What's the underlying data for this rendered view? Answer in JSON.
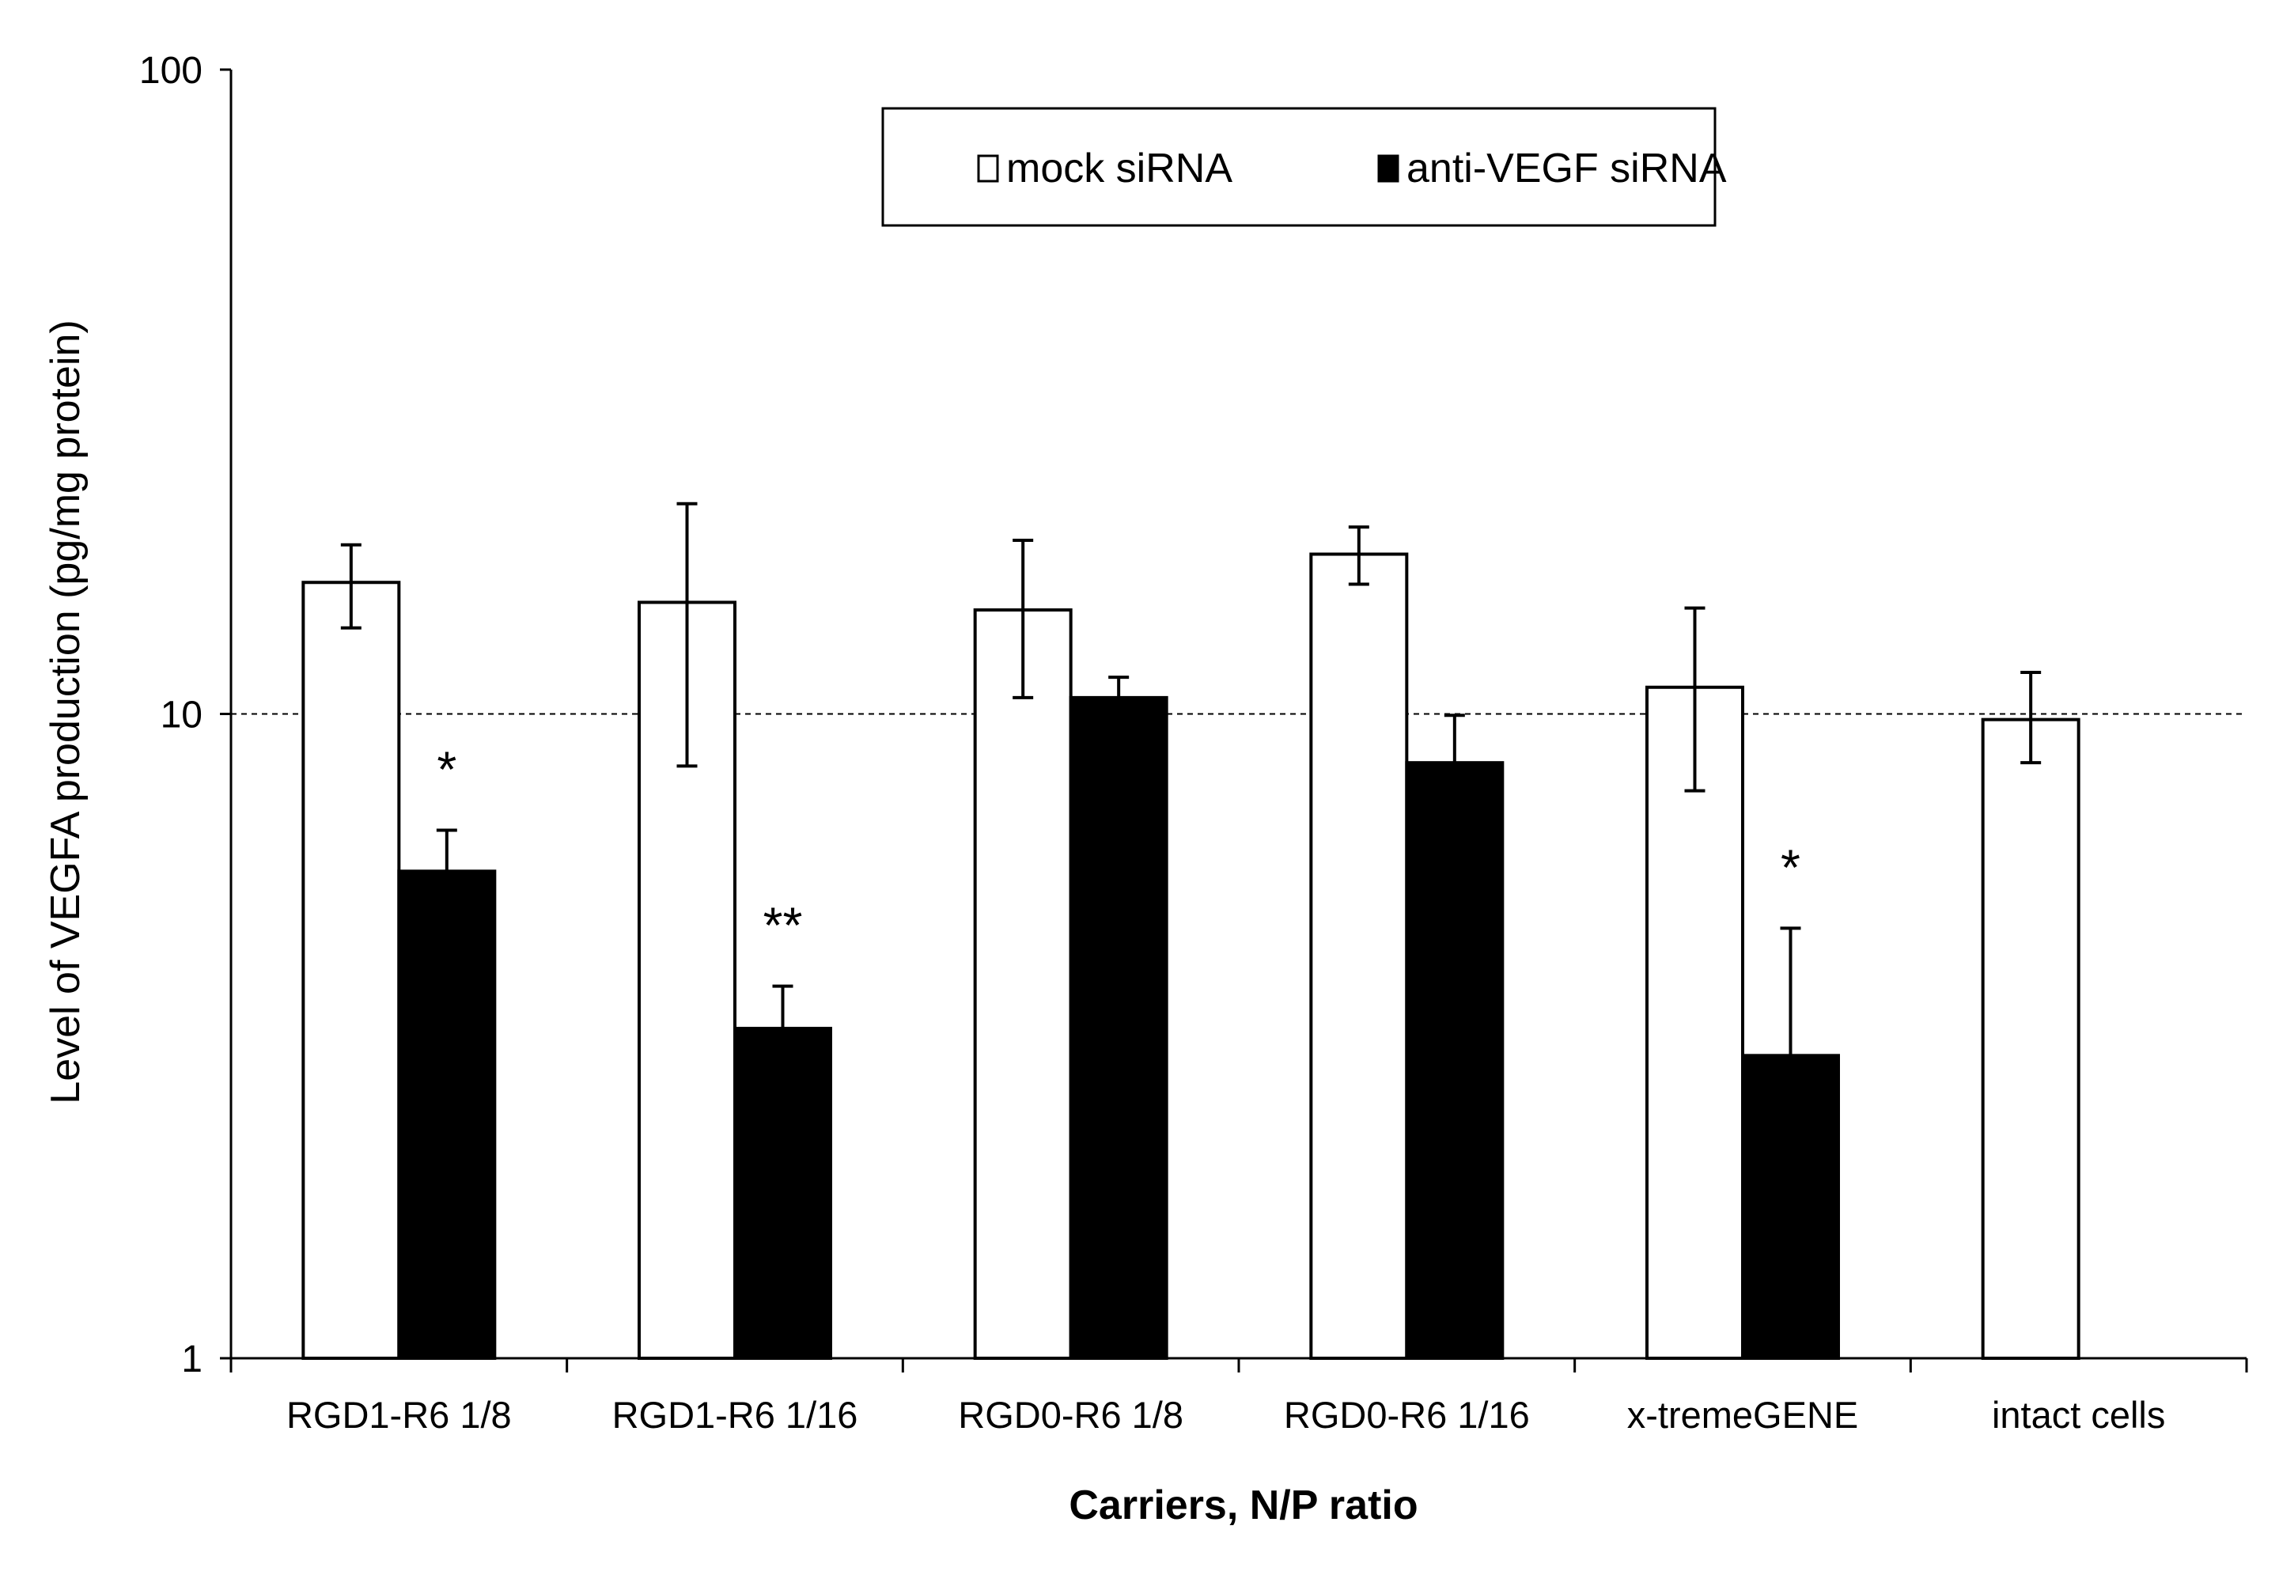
{
  "chart_data": {
    "type": "bar",
    "title": "",
    "xlabel": "Carriers, N/P ratio",
    "ylabel": "Level of VEGFA production (pg/mg protein)",
    "yscale": "log",
    "ylim": [
      1,
      100
    ],
    "yticks": [
      {
        "value": 1,
        "label": "1"
      },
      {
        "value": 10,
        "label": "10"
      },
      {
        "value": 100,
        "label": "100"
      }
    ],
    "reference_line": {
      "value": 10,
      "style": "dashed"
    },
    "categories": [
      "RGD1-R6 1/8",
      "RGD1-R6 1/16",
      "RGD0-R6 1/8",
      "RGD0-R6 1/16",
      "x-tremeGENE",
      "intact cells"
    ],
    "series": [
      {
        "name": "mock siRNA",
        "color": "#ffffff",
        "values": [
          16.0,
          14.9,
          14.5,
          17.7,
          11.0,
          9.8
        ],
        "err_low": [
          13.6,
          8.3,
          10.6,
          15.9,
          7.6,
          8.4
        ],
        "err_high": [
          18.3,
          21.2,
          18.6,
          19.5,
          14.6,
          11.6
        ]
      },
      {
        "name": "anti-VEGF siRNA",
        "color": "#000000",
        "values": [
          5.7,
          3.25,
          10.6,
          8.4,
          2.95,
          null
        ],
        "err_low": [
          5.7,
          3.25,
          10.6,
          8.4,
          2.95,
          null
        ],
        "err_high": [
          6.6,
          3.78,
          11.4,
          9.95,
          4.65,
          null
        ]
      }
    ],
    "annotations": [
      {
        "category_index": 0,
        "series": "anti-VEGF siRNA",
        "text": "*"
      },
      {
        "category_index": 1,
        "series": "anti-VEGF siRNA",
        "text": "**"
      },
      {
        "category_index": 4,
        "series": "anti-VEGF siRNA",
        "text": "*"
      }
    ],
    "legend": {
      "position": "top",
      "entries": [
        "mock siRNA",
        "anti-VEGF siRNA"
      ]
    }
  }
}
